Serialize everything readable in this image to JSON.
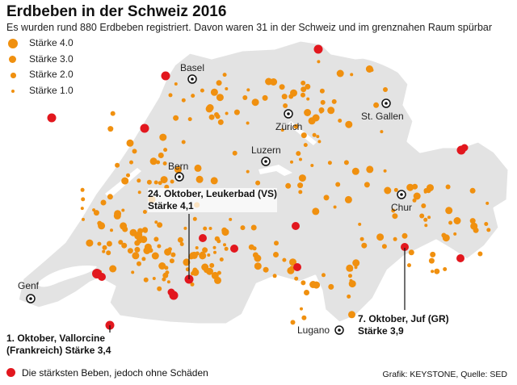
{
  "title": "Erdbeben in der Schweiz 2016",
  "subtitle": "Es wurden rund 880 Erdbeben registriert. Davon waren 31 in der Schweiz und im grenznahen Raum spürbar",
  "legend": [
    {
      "label": "Stärke 4.0",
      "magnitude": 4.0
    },
    {
      "label": "Stärke 3.0",
      "magnitude": 3.0
    },
    {
      "label": "Stärke 2.0",
      "magnitude": 2.0
    },
    {
      "label": "Stärke 1.0",
      "magnitude": 1.0
    }
  ],
  "cities": [
    "Basel",
    "Zürich",
    "St. Gallen",
    "Bern",
    "Luzern",
    "Chur",
    "Genf",
    "Lugano"
  ],
  "callouts": {
    "leukerbad": {
      "line1": "24. Oktober, Leukerbad (VS)",
      "line2": "Stärke 4,1"
    },
    "vallorcine": {
      "line1": "1. Oktober, Vallorcine",
      "line2": "(Frankreich) Stärke 3,4"
    },
    "juf": {
      "line1": "7. Oktober, Juf (GR)",
      "line2": "Stärke 3,9"
    }
  },
  "footer_legend": "Die stärksten Beben, jedoch ohne Schäden",
  "credit": "Grafik: KEYSTONE, Quelle: SED",
  "colors": {
    "minor": "#f0900f",
    "strongest": "#e2171e",
    "land": "#e3e3e3",
    "border": "#ffffff"
  }
}
